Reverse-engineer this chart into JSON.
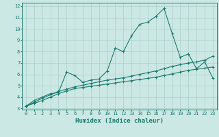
{
  "title": "",
  "xlabel": "Humidex (Indice chaleur)",
  "x_values": [
    0,
    1,
    2,
    3,
    4,
    5,
    6,
    7,
    8,
    9,
    10,
    11,
    12,
    13,
    14,
    15,
    16,
    17,
    18,
    19,
    20,
    21,
    22,
    23
  ],
  "line1": [
    3.2,
    3.7,
    4.0,
    4.3,
    4.4,
    6.2,
    5.9,
    5.3,
    5.5,
    5.6,
    6.3,
    8.3,
    8.0,
    9.4,
    10.4,
    10.6,
    11.1,
    11.8,
    9.6,
    7.5,
    7.8,
    6.5,
    7.1,
    5.7
  ],
  "line2": [
    3.2,
    3.55,
    3.9,
    4.2,
    4.5,
    4.7,
    4.9,
    5.05,
    5.2,
    5.35,
    5.5,
    5.6,
    5.7,
    5.85,
    6.0,
    6.15,
    6.3,
    6.5,
    6.7,
    6.85,
    7.0,
    7.1,
    7.25,
    7.6
  ],
  "line3": [
    3.2,
    3.45,
    3.7,
    4.0,
    4.3,
    4.55,
    4.75,
    4.85,
    4.95,
    5.05,
    5.15,
    5.25,
    5.35,
    5.45,
    5.55,
    5.65,
    5.75,
    5.9,
    6.05,
    6.2,
    6.35,
    6.45,
    6.55,
    6.65
  ],
  "line_color": "#1a7a6e",
  "bg_color": "#cce8e4",
  "grid_color": "#aacfcb",
  "ylim_min": 3,
  "ylim_max": 12,
  "xlim_min": 0,
  "xlim_max": 23,
  "yticks": [
    3,
    4,
    5,
    6,
    7,
    8,
    9,
    10,
    11,
    12
  ],
  "xticks": [
    0,
    1,
    2,
    3,
    4,
    5,
    6,
    7,
    8,
    9,
    10,
    11,
    12,
    13,
    14,
    15,
    16,
    17,
    18,
    19,
    20,
    21,
    22,
    23
  ],
  "marker": "+",
  "markersize": 3,
  "linewidth": 0.8,
  "tick_fontsize": 5.0,
  "xlabel_fontsize": 6.5
}
